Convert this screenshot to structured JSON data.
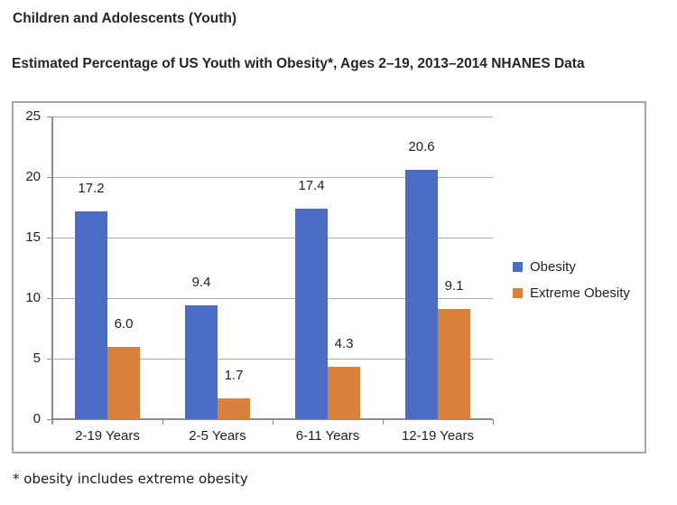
{
  "page_title": "Children and Adolescents (Youth)",
  "chart_title": "Estimated Percentage of US Youth with Obesity*, Ages 2–19, 2013–2014 NHANES Data",
  "footnote": "* obesity includes extreme obesity",
  "colors": {
    "obesity_bar": "#4c6bc2",
    "extreme_obesity_bar": "#d9813c",
    "gridline": "#ababab",
    "axis": "#8c8c8c",
    "frame_border": "#a6a6a6",
    "text": "#1f1f1f"
  },
  "chart_data": {
    "type": "bar",
    "title": "Estimated Percentage of US Youth with Obesity*, Ages 2–19, 2013–2014 NHANES Data",
    "categories": [
      "2-19 Years",
      "2-5 Years",
      "6-11 Years",
      "12-19 Years"
    ],
    "series": [
      {
        "name": "Obesity",
        "color": "#4c6bc2",
        "values": [
          17.2,
          9.4,
          17.4,
          20.6
        ],
        "value_labels": [
          "17.2",
          "9.4",
          "17.4",
          "20.6"
        ]
      },
      {
        "name": "Extreme Obesity",
        "color": "#d9813c",
        "values": [
          6.0,
          1.7,
          4.3,
          9.1
        ],
        "value_labels": [
          "6.0",
          "1.7",
          "4.3",
          "9.1"
        ]
      }
    ],
    "xlabel": "",
    "ylabel": "",
    "ylim": [
      0,
      25
    ],
    "y_ticks": [
      0,
      5,
      10,
      15,
      20,
      25
    ],
    "y_tick_labels": [
      "0",
      "5",
      "10",
      "15",
      "20",
      "25"
    ],
    "grid": true,
    "data_labels": true,
    "legend_position": "right"
  }
}
